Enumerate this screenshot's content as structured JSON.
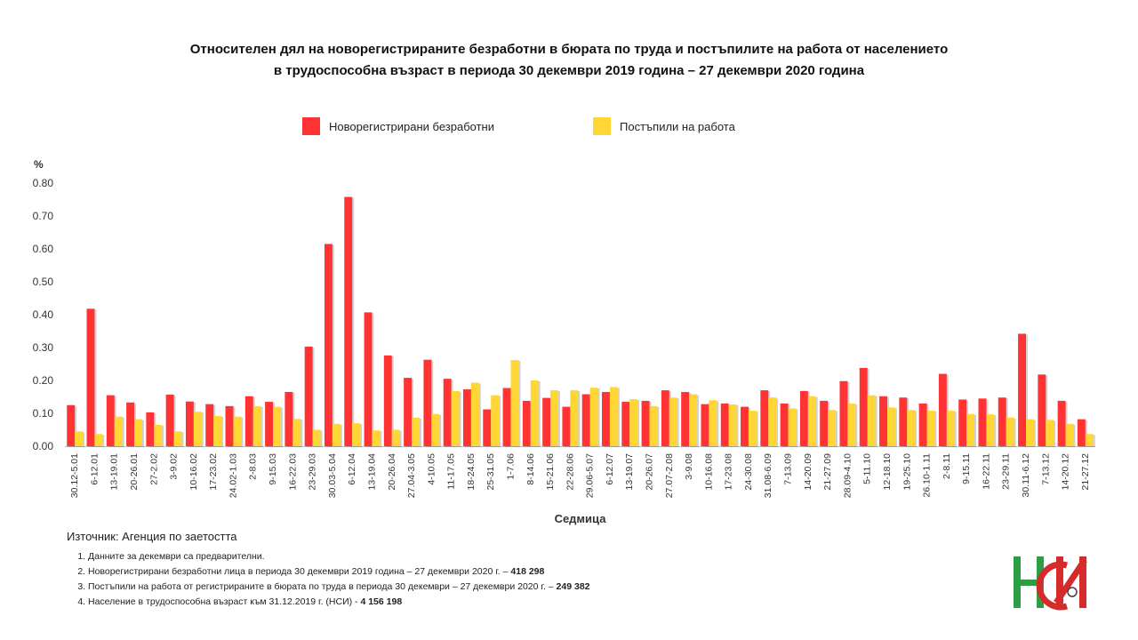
{
  "title_line1": "Относителен дял на новорегистрираните безработни в бюрата по труда и постъпилите на работа от населението",
  "title_line2": "в трудоспособна възраст в периода 30 декември 2019 година  – 27 декември 2020 година",
  "source": "Източник: Агенция по заетостта",
  "notes": [
    {
      "text": "Данните за декември  са предварителни.",
      "bold": ""
    },
    {
      "text": "Новорегистрирани безработни лица в периода 30 декември  2019 година – 27 декември  2020 г. – ",
      "bold": "418 298"
    },
    {
      "text": "Постъпили на работа от регистрираните в бюрата по труда в периода 30 декември  – 27 декември  2020 г. – ",
      "bold": "249 382"
    },
    {
      "text": "Население в трудоспособна възраст към 31.12.2019 г. (НСИ)  - ",
      "bold": "4 156 198"
    }
  ],
  "logo_text": "НСИ",
  "chart_data": {
    "type": "bar",
    "ylabel": "%",
    "xlabel": "Седмица",
    "ylim": [
      0,
      0.8
    ],
    "yticks": [
      "0.00",
      "0.10",
      "0.20",
      "0.30",
      "0.40",
      "0.50",
      "0.60",
      "0.70",
      "0.80"
    ],
    "grid": false,
    "legend_position": "top",
    "categories": [
      "30.12-5.01",
      "6-12.01",
      "13-19.01",
      "20-26.01",
      "27-2.02",
      "3-9.02",
      "10-16.02",
      "17-23.02",
      "24.02-1.03",
      "2-8.03",
      "9-15.03",
      "16-22.03",
      "23-29.03",
      "30.03-5.04",
      "6-12.04",
      "13-19.04",
      "20-26.04",
      "27.04-3.05",
      "4-10.05",
      "11-17.05",
      "18-24.05",
      "25-31.05",
      "1-7.06",
      "8-14.06",
      "15-21.06",
      "22-28.06",
      "29.06-5.07",
      "6-12.07",
      "13-19.07",
      "20-26.07",
      "27.07-2.08",
      "3-9.08",
      "10-16.08",
      "17-23.08",
      "24-30.08",
      "31.08-6.09",
      "7-13.09",
      "14-20.09",
      "21-27.09",
      "28.09-4.10",
      "5-11.10",
      "12-18.10",
      "19-25.10",
      "26.10-1.11",
      "2-8.11",
      "9-15.11",
      "16-22.11",
      "23-29.11",
      "30.11-6.12",
      "7-13.12",
      "14-20.12",
      "21-27.12"
    ],
    "series": [
      {
        "name": "Новорегистрирани безработни",
        "color": "#ff3333",
        "values": [
          0.125,
          0.418,
          0.155,
          0.133,
          0.103,
          0.157,
          0.136,
          0.128,
          0.122,
          0.152,
          0.135,
          0.165,
          0.303,
          0.615,
          0.758,
          0.407,
          0.276,
          0.208,
          0.263,
          0.205,
          0.173,
          0.112,
          0.177,
          0.138,
          0.147,
          0.12,
          0.158,
          0.165,
          0.135,
          0.138,
          0.17,
          0.165,
          0.128,
          0.13,
          0.12,
          0.17,
          0.13,
          0.168,
          0.138,
          0.198,
          0.238,
          0.152,
          0.148,
          0.13,
          0.22,
          0.142,
          0.145,
          0.148,
          0.342,
          0.218,
          0.138,
          0.082
        ]
      },
      {
        "name": "Постъпили на работа",
        "color": "#ffd633",
        "values": [
          0.045,
          0.037,
          0.09,
          0.082,
          0.065,
          0.045,
          0.105,
          0.092,
          0.09,
          0.122,
          0.12,
          0.083,
          0.05,
          0.068,
          0.07,
          0.048,
          0.05,
          0.087,
          0.098,
          0.168,
          0.193,
          0.155,
          0.262,
          0.2,
          0.17,
          0.17,
          0.178,
          0.18,
          0.143,
          0.122,
          0.148,
          0.158,
          0.14,
          0.127,
          0.108,
          0.148,
          0.115,
          0.152,
          0.11,
          0.13,
          0.155,
          0.118,
          0.11,
          0.108,
          0.108,
          0.098,
          0.097,
          0.087,
          0.082,
          0.08,
          0.068,
          0.037
        ]
      }
    ]
  }
}
